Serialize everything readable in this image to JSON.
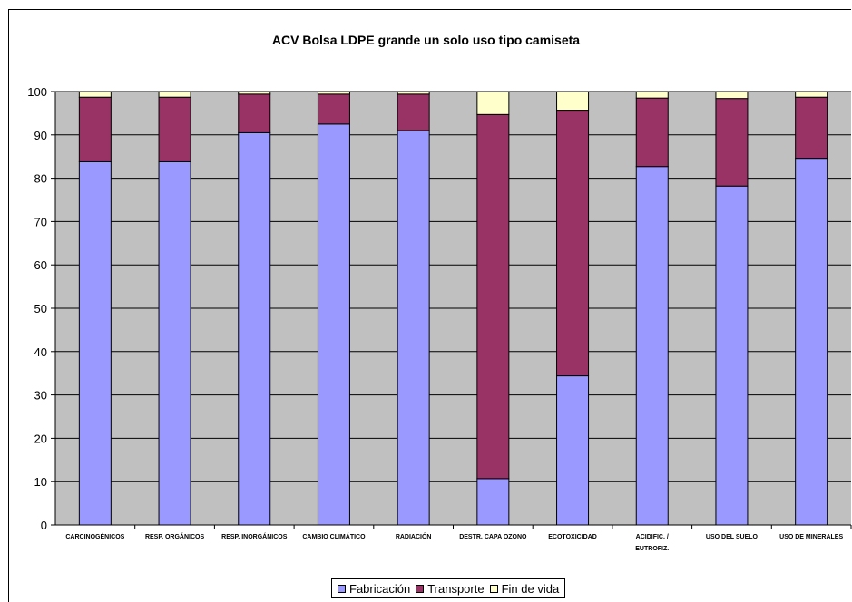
{
  "chart_data": {
    "type": "bar",
    "stacked": true,
    "title": "ACV Bolsa LDPE grande un solo uso tipo camiseta",
    "xlabel": "",
    "ylabel": "",
    "ylim": [
      0,
      100
    ],
    "yticks": [
      "0",
      "10",
      "20",
      "30",
      "40",
      "50",
      "60",
      "70",
      "80",
      "90",
      "100"
    ],
    "grid": true,
    "legend_position": "bottom",
    "plot_background": "#c0c0c0",
    "categories": [
      [
        "CARCINOGÉNICOS"
      ],
      [
        "RESP. ORGÁNICOS"
      ],
      [
        "RESP. INORGÁNICOS"
      ],
      [
        "CAMBIO CLIMÁTICO"
      ],
      [
        "RADIACIÓN"
      ],
      [
        "DESTR. CAPA OZONO"
      ],
      [
        "ECOTOXICIDAD"
      ],
      [
        "ACIDIFIC. /",
        "EUTROFIZ."
      ],
      [
        "USO DEL SUELO"
      ],
      [
        "USO DE MINERALES"
      ]
    ],
    "series": [
      {
        "name": "Fabricación",
        "color": "#9999ff",
        "values": [
          83.8,
          83.8,
          90.5,
          92.5,
          91,
          10.7,
          34.4,
          82.7,
          78.2,
          84.6
        ]
      },
      {
        "name": "Transporte",
        "color": "#993366",
        "values": [
          14.9,
          14.9,
          8.9,
          6.9,
          8.4,
          84,
          61.3,
          15.8,
          20.2,
          14.1
        ]
      },
      {
        "name": "Fin de vida",
        "color": "#ffffcc",
        "values": [
          1.3,
          1.3,
          0.6,
          0.6,
          0.6,
          5.3,
          4.3,
          1.5,
          1.6,
          1.3
        ]
      }
    ]
  }
}
